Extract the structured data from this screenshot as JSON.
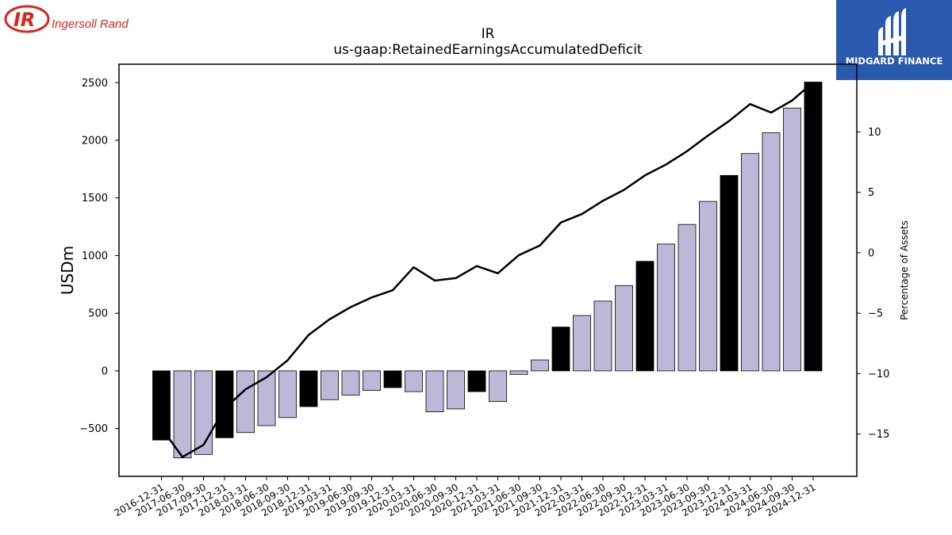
{
  "logos": {
    "ir_mark": "IR",
    "ir_name": "Ingersoll Rand",
    "midgard_name": "MIDGARD FINANCE"
  },
  "colors": {
    "bar_light": "#bcb8d8",
    "bar_dark": "#000000",
    "line": "#000000",
    "ir_red": "#d7261e",
    "midgard_blue": "#2a5aad"
  },
  "chart_data": {
    "type": "bar",
    "title": "IR",
    "subtitle": "us-gaap:RetainedEarningsAccumulatedDeficit",
    "ylabel": "USDm",
    "y2label": "Percentage of Assets",
    "ylim": [
      -915,
      2660
    ],
    "y2lim": [
      -18.5,
      15.6
    ],
    "yticks": [
      -500,
      0,
      500,
      1000,
      1500,
      2000,
      2500
    ],
    "y2ticks": [
      -15,
      -10,
      -5,
      0,
      5,
      10
    ],
    "categories": [
      "2016-12-31",
      "2017-06-30",
      "2017-09-30",
      "2017-12-31",
      "2018-03-31",
      "2018-06-30",
      "2018-09-30",
      "2018-12-31",
      "2019-03-31",
      "2019-06-30",
      "2019-09-30",
      "2019-12-31",
      "2020-03-31",
      "2020-06-30",
      "2020-09-30",
      "2020-12-31",
      "2021-03-31",
      "2021-06-30",
      "2021-09-30",
      "2021-12-31",
      "2022-03-31",
      "2022-06-30",
      "2022-09-30",
      "2022-12-31",
      "2023-03-31",
      "2023-06-30",
      "2023-09-30",
      "2023-12-31",
      "2024-03-31",
      "2024-06-30",
      "2024-09-30",
      "2024-12-31"
    ],
    "series": [
      {
        "kind": "bar",
        "values": [
          -600,
          -755,
          -725,
          -580,
          -535,
          -475,
          -405,
          -310,
          -250,
          -210,
          -170,
          -145,
          -180,
          -355,
          -330,
          -180,
          -265,
          -30,
          95,
          380,
          480,
          605,
          740,
          950,
          1100,
          1270,
          1470,
          1695,
          1885,
          2065,
          2280,
          2505
        ],
        "dark": [
          true,
          false,
          false,
          true,
          false,
          false,
          false,
          true,
          false,
          false,
          false,
          true,
          false,
          false,
          false,
          true,
          false,
          false,
          false,
          true,
          false,
          false,
          false,
          true,
          false,
          false,
          false,
          true,
          false,
          false,
          false,
          true
        ]
      },
      {
        "kind": "line",
        "axis": "right",
        "values": [
          -14.5,
          -16.9,
          -15.9,
          -12.9,
          -11.3,
          -10.3,
          -8.9,
          -6.8,
          -5.5,
          -4.5,
          -3.7,
          -3.1,
          -1.2,
          -2.3,
          -2.1,
          -1.1,
          -1.7,
          -0.2,
          0.6,
          2.5,
          3.2,
          4.3,
          5.2,
          6.4,
          7.3,
          8.4,
          9.7,
          10.9,
          12.3,
          11.6,
          12.6,
          14.1
        ]
      }
    ]
  }
}
